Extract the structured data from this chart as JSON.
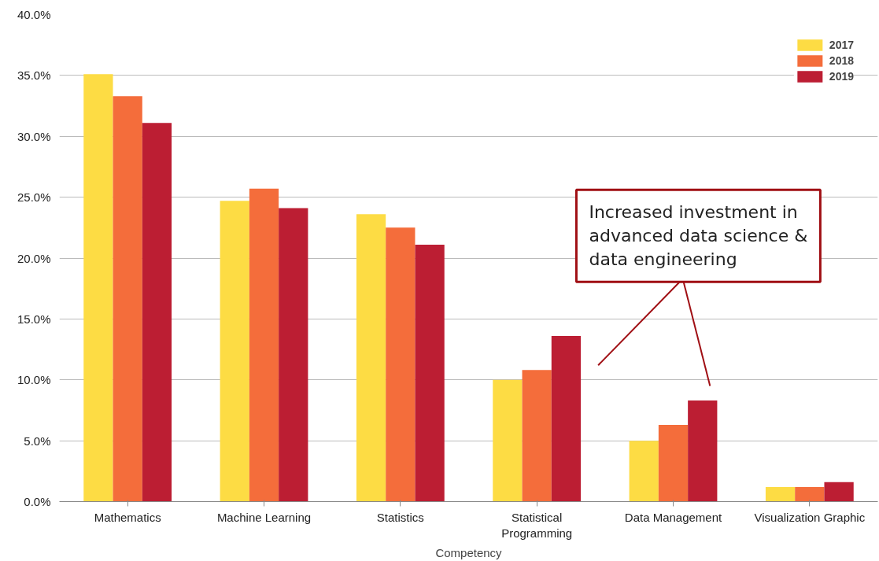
{
  "chart_data": {
    "type": "bar",
    "xlabel": "Competency",
    "categories": [
      "Mathematics",
      "Machine Learning",
      "Statistics",
      "Statistical\nProgramming",
      "Data Management",
      "Visualization Graphic"
    ],
    "series": [
      {
        "name": "2017",
        "color": "#fddc44",
        "values": [
          35.1,
          24.7,
          23.6,
          10.0,
          5.0,
          1.2
        ]
      },
      {
        "name": "2018",
        "color": "#f46d3b",
        "values": [
          33.3,
          25.7,
          22.5,
          10.8,
          6.3,
          1.2
        ]
      },
      {
        "name": "2019",
        "color": "#bc1e33",
        "values": [
          31.1,
          24.1,
          21.1,
          13.6,
          8.3,
          1.6
        ]
      }
    ],
    "ylim": [
      0,
      40
    ],
    "yticks": [
      {
        "value": 0,
        "label": "0.0%"
      },
      {
        "value": 5,
        "label": "5.0%"
      },
      {
        "value": 10,
        "label": "10.0%"
      },
      {
        "value": 15,
        "label": "15.0%"
      },
      {
        "value": 20,
        "label": "20.0%"
      },
      {
        "value": 25,
        "label": "25.0%"
      },
      {
        "value": 30,
        "label": "30.0%"
      },
      {
        "value": 35,
        "label": "35.0%"
      },
      {
        "value": 40,
        "label": "40.0%"
      }
    ],
    "grid": "y",
    "legend": "top right",
    "annotations": [
      "Increased investment in\nadvanced data science &\ndata engineering"
    ]
  }
}
